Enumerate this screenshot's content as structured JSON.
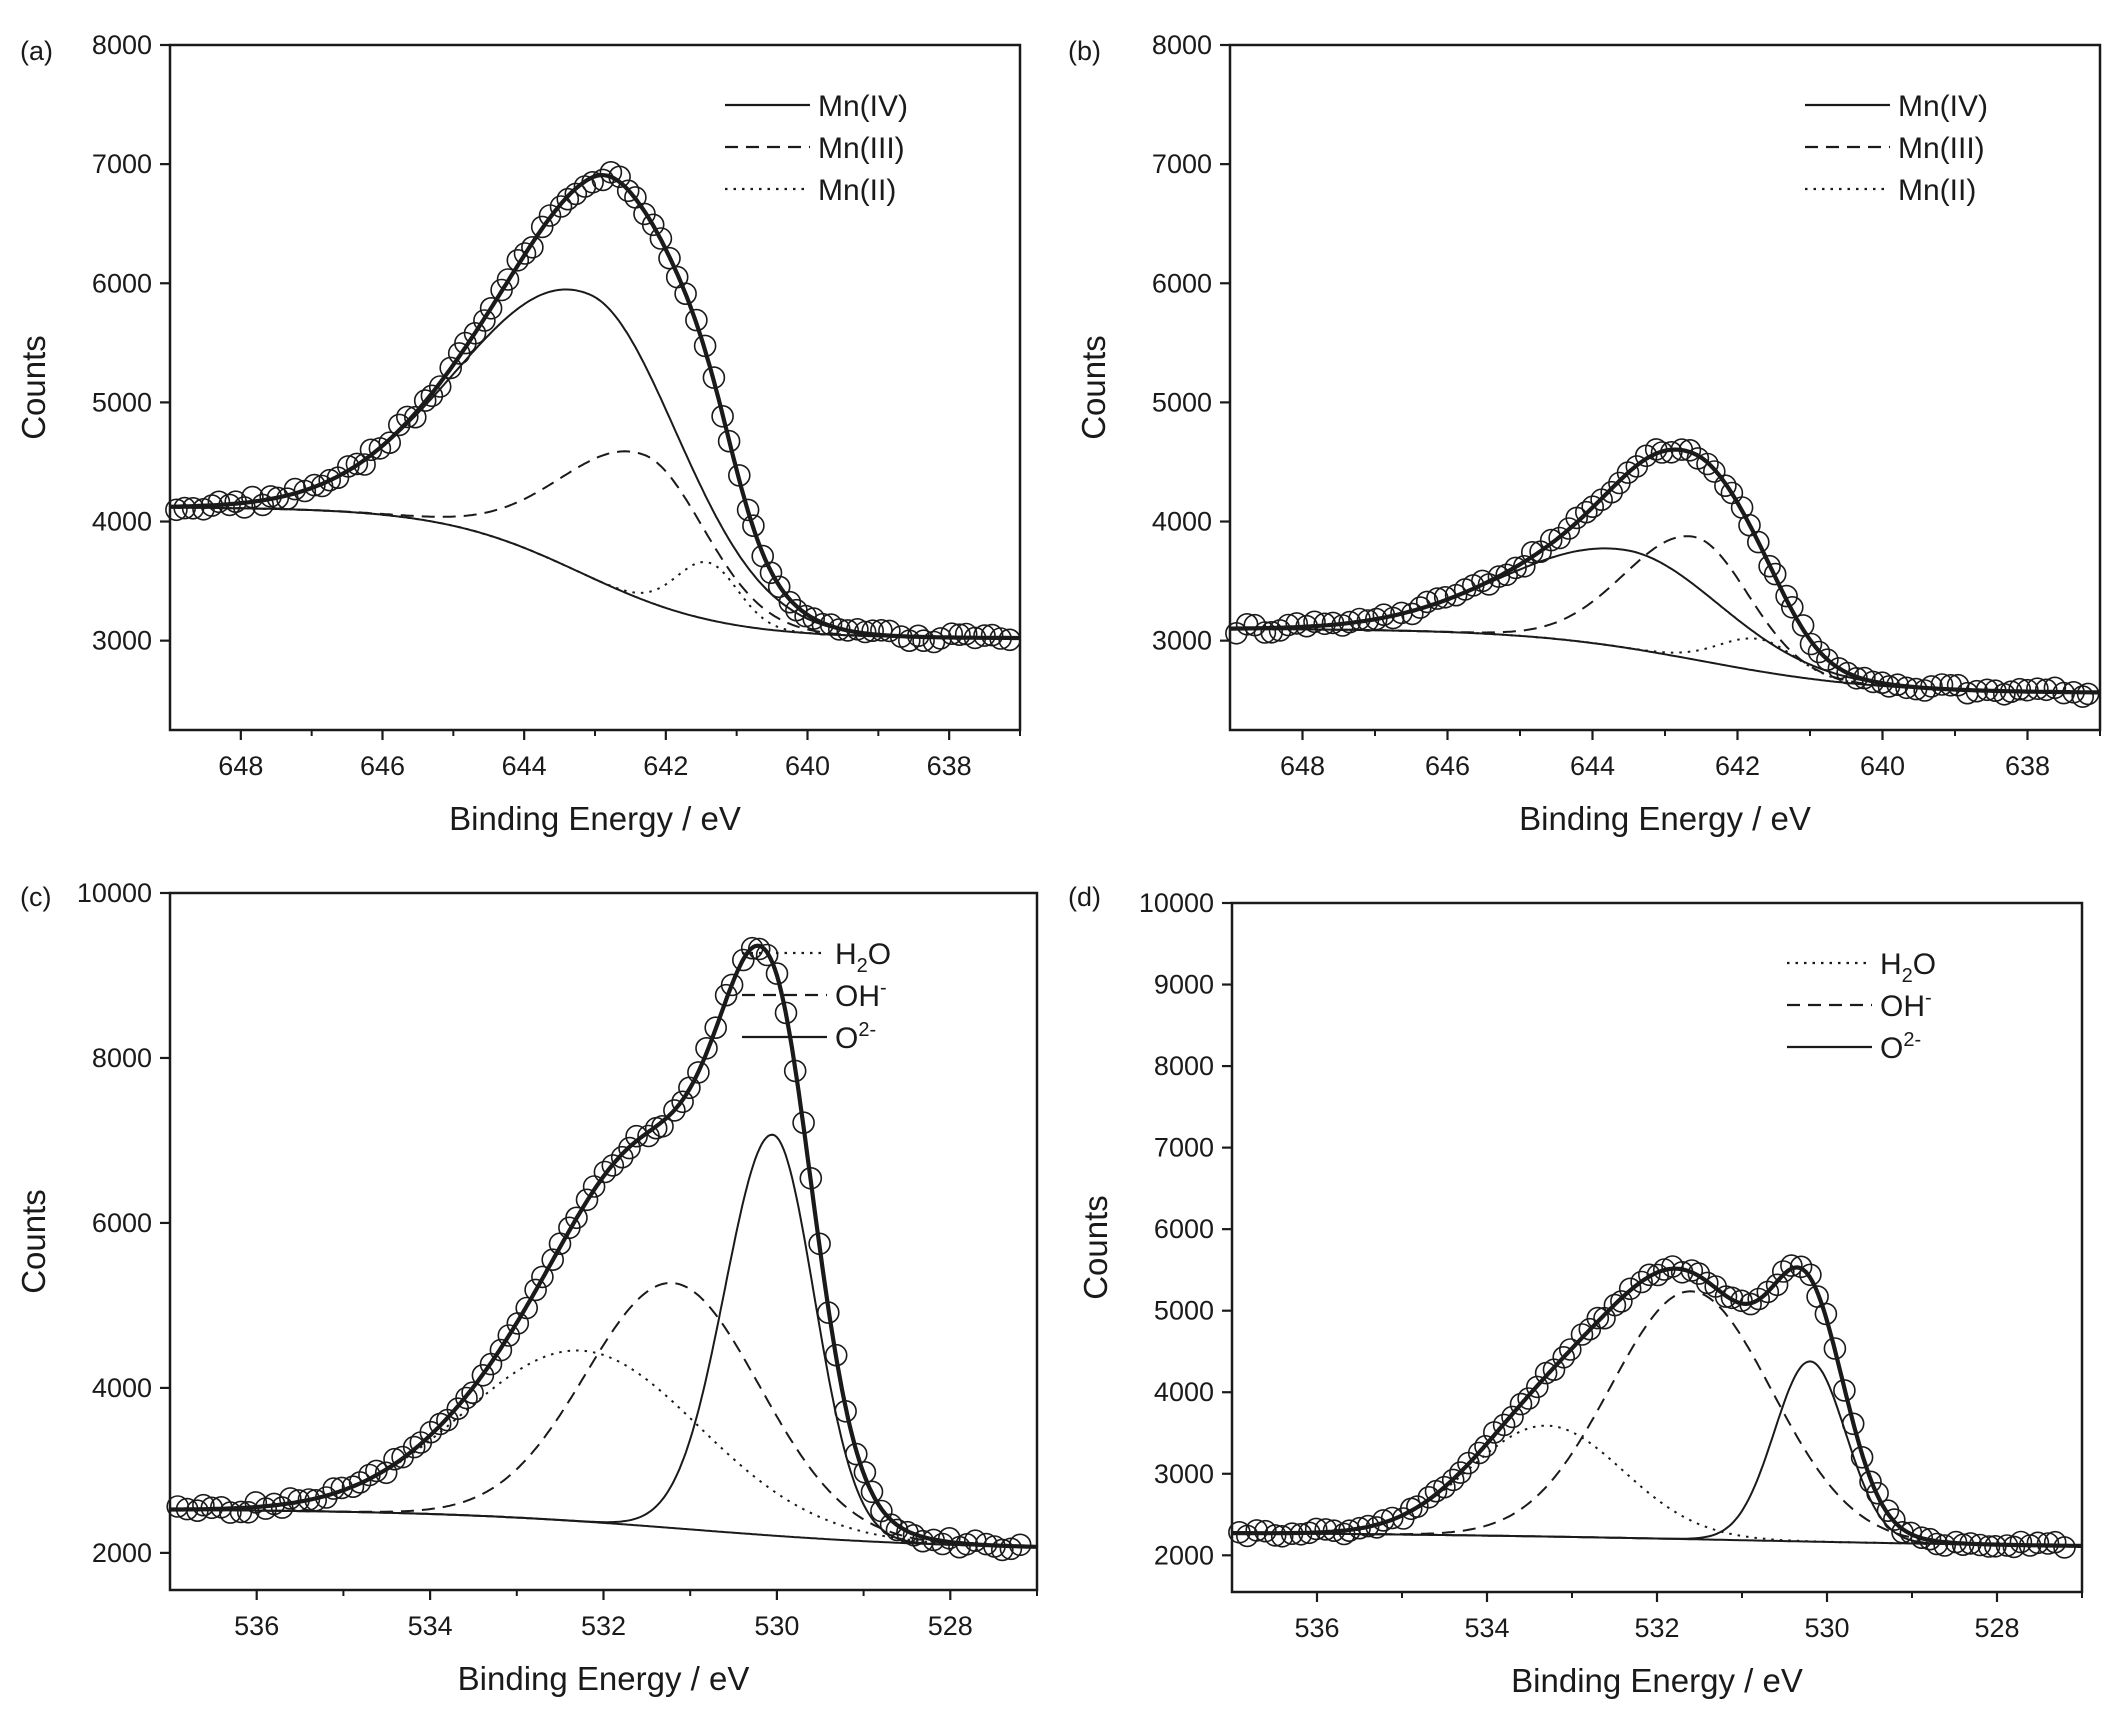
{
  "chart_data": [
    {
      "type": "scatter",
      "panel_label": "(a)",
      "xlabel": "Binding Energy / eV",
      "ylabel": "Counts",
      "xlim": [
        649,
        637
      ],
      "ylim": [
        2250,
        8000
      ],
      "x_reversed": true,
      "x_ticks": [
        "648",
        "646",
        "644",
        "642",
        "640",
        "638"
      ],
      "y_ticks": [
        "3000",
        "4000",
        "5000",
        "6000",
        "7000",
        "8000"
      ],
      "grid": false,
      "legend_position": "top-right",
      "legend": [
        {
          "label": "Mn(IV)",
          "style": "solid"
        },
        {
          "label": "Mn(III)",
          "style": "dashed"
        },
        {
          "label": "Mn(II)",
          "style": "dotted"
        }
      ],
      "baseline": {
        "high": 4120,
        "low": 3020,
        "center": 643.2,
        "width": 1.0
      },
      "components": [
        {
          "role": "Mn(IV)",
          "style": "solid",
          "center": 643.05,
          "height": 2370,
          "sigma_left": 1.75,
          "sigma_right": 1.25
        },
        {
          "role": "Mn(III)",
          "style": "dashed",
          "center": 642.3,
          "height": 1220,
          "sigma_left": 1.15,
          "sigma_right": 0.85
        },
        {
          "role": "Mn(II)",
          "style": "dotted",
          "center": 641.4,
          "height": 480,
          "sigma_left": 0.45,
          "sigma_right": 0.42
        }
      ],
      "envelope": {
        "style": "solid-bold"
      },
      "data_points": {
        "marker": "open-circle",
        "x_start": 648.9,
        "x_end": 637.1,
        "step": 0.12,
        "noise": 45
      }
    },
    {
      "type": "scatter",
      "panel_label": "(b)",
      "xlabel": "Binding Energy / eV",
      "ylabel": "Counts",
      "xlim": [
        649,
        637
      ],
      "ylim": [
        2250,
        8000
      ],
      "x_reversed": true,
      "x_ticks": [
        "648",
        "646",
        "644",
        "642",
        "640",
        "638"
      ],
      "y_ticks": [
        "3000",
        "4000",
        "5000",
        "6000",
        "7000",
        "8000"
      ],
      "grid": false,
      "legend_position": "top-right",
      "legend": [
        {
          "label": "Mn(IV)",
          "style": "solid"
        },
        {
          "label": "Mn(III)",
          "style": "dashed"
        },
        {
          "label": "Mn(II)",
          "style": "dotted"
        }
      ],
      "baseline": {
        "high": 3100,
        "low": 2560,
        "center": 642.5,
        "width": 1.2
      },
      "components": [
        {
          "role": "Mn(IV)",
          "style": "solid",
          "center": 643.55,
          "height": 820,
          "sigma_left": 1.65,
          "sigma_right": 1.3
        },
        {
          "role": "Mn(III)",
          "style": "dashed",
          "center": 642.6,
          "height": 1030,
          "sigma_left": 0.95,
          "sigma_right": 0.75
        },
        {
          "role": "Mn(II)",
          "style": "dotted",
          "center": 641.7,
          "height": 270,
          "sigma_left": 0.55,
          "sigma_right": 0.5
        }
      ],
      "envelope": {
        "style": "solid-bold"
      },
      "data_points": {
        "marker": "open-circle",
        "x_start": 648.9,
        "x_end": 637.1,
        "step": 0.12,
        "noise": 40
      }
    },
    {
      "type": "scatter",
      "panel_label": "(c)",
      "xlabel": "Binding Energy / eV",
      "ylabel": "Counts",
      "xlim": [
        537,
        527
      ],
      "ylim": [
        1550,
        10000
      ],
      "x_reversed": true,
      "x_ticks": [
        "536",
        "534",
        "532",
        "530",
        "528"
      ],
      "y_ticks": [
        "2000",
        "4000",
        "6000",
        "8000",
        "10000"
      ],
      "grid": false,
      "legend_position": "top-right",
      "legend": [
        {
          "label": "H",
          "sub": "2",
          "label_after": "O",
          "style": "dotted"
        },
        {
          "label": "OH",
          "sup": "-",
          "style": "dashed"
        },
        {
          "label": "O",
          "sup": "2-",
          "style": "solid"
        }
      ],
      "baseline": {
        "high": 2530,
        "low": 2040,
        "center": 531.0,
        "width": 1.5
      },
      "components": [
        {
          "role": "H2O",
          "style": "dotted",
          "center": 532.25,
          "height": 2070,
          "sigma_left": 1.35,
          "sigma_right": 1.35
        },
        {
          "role": "OH-",
          "style": "dashed",
          "center": 531.2,
          "height": 2970,
          "sigma_left": 1.0,
          "sigma_right": 1.0
        },
        {
          "role": "O2-",
          "style": "solid",
          "center": 530.05,
          "height": 4860,
          "sigma_left": 0.55,
          "sigma_right": 0.48
        }
      ],
      "envelope": {
        "style": "solid-bold"
      },
      "data_points": {
        "marker": "open-circle",
        "x_start": 536.9,
        "x_end": 527.1,
        "step": 0.1,
        "noise": 60
      }
    },
    {
      "type": "scatter",
      "panel_label": "(d)",
      "xlabel": "Binding Energy / eV",
      "ylabel": "Counts",
      "xlim": [
        537,
        527
      ],
      "ylim": [
        1550,
        10000
      ],
      "x_reversed": true,
      "x_ticks": [
        "536",
        "534",
        "532",
        "530",
        "528"
      ],
      "y_ticks": [
        "2000",
        "3000",
        "4000",
        "5000",
        "6000",
        "7000",
        "8000",
        "9000",
        "10000"
      ],
      "grid": false,
      "legend_position": "top-right",
      "legend": [
        {
          "label": "H",
          "sub": "2",
          "label_after": "O",
          "style": "dotted"
        },
        {
          "label": "OH",
          "sup": "-",
          "style": "dashed"
        },
        {
          "label": "O",
          "sup": "2-",
          "style": "solid"
        }
      ],
      "baseline": {
        "high": 2290,
        "low": 2080,
        "center": 531.0,
        "width": 2.5
      },
      "components": [
        {
          "role": "H2O",
          "style": "dotted",
          "center": 533.3,
          "height": 1360,
          "sigma_left": 0.9,
          "sigma_right": 0.9
        },
        {
          "role": "OH-",
          "style": "dashed",
          "center": 531.6,
          "height": 3040,
          "sigma_left": 0.95,
          "sigma_right": 0.95
        },
        {
          "role": "O2-",
          "style": "solid",
          "center": 530.2,
          "height": 2210,
          "sigma_left": 0.42,
          "sigma_right": 0.42
        }
      ],
      "envelope": {
        "style": "solid-bold"
      },
      "data_points": {
        "marker": "open-circle",
        "x_start": 536.9,
        "x_end": 527.1,
        "step": 0.1,
        "noise": 45
      }
    }
  ]
}
